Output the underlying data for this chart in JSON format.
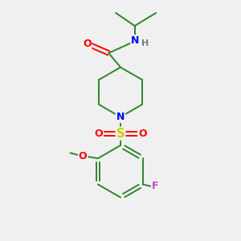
{
  "bg_color": "#f0f0f0",
  "colors": {
    "C": "#2d862d",
    "N": "#0000ff",
    "O": "#ff0000",
    "S": "#cccc00",
    "F": "#cc44cc",
    "H": "#708090",
    "bond": "#2d862d"
  },
  "figsize": [
    3.0,
    3.0
  ],
  "dpi": 100
}
